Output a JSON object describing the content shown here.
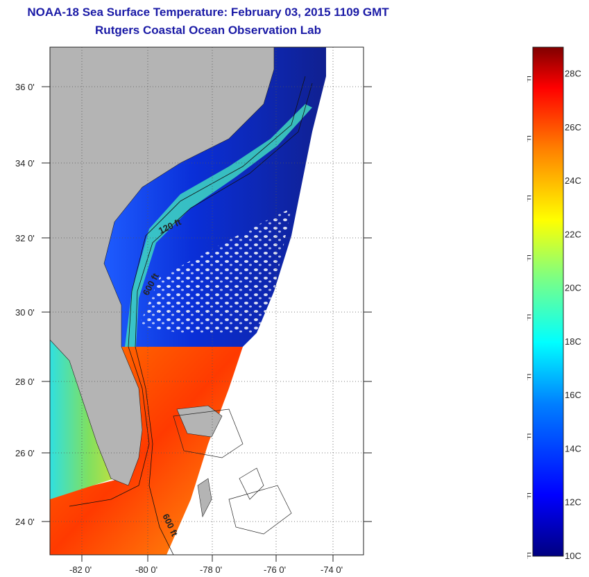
{
  "title": "NOAA-18 Sea Surface Temperature:  February 03, 2015 1109 GMT",
  "subtitle": "Rutgers Coastal Ocean Observation Lab",
  "map": {
    "lon_labels": [
      "-82 0'",
      "-80 0'",
      "-78 0'",
      "-76 0'",
      "-74 0'"
    ],
    "lat_labels": [
      "36 0'",
      "34 0'",
      "32 0'",
      "30 0'",
      "28 0'",
      "26 0'",
      "24 0'"
    ],
    "contour_labels": [
      "120 ft",
      "600 ft",
      "600 ft"
    ],
    "colors": {
      "land": "#b4b4b4",
      "no_data": "#ffffff",
      "grid": "#555555"
    }
  },
  "colorbar": {
    "fahrenheit": [
      "82F",
      "78F",
      "74F",
      "70F",
      "66F",
      "62F",
      "58F",
      "54F",
      "50F"
    ],
    "celsius": [
      "28C",
      "26C",
      "24C",
      "22C",
      "20C",
      "18C",
      "16C",
      "14C",
      "12C",
      "10C"
    ],
    "min_c": 10,
    "max_c": 29,
    "colors": [
      "#000080",
      "#0000ff",
      "#0080ff",
      "#00ffff",
      "#80ff80",
      "#ffff00",
      "#ff8000",
      "#ff0000",
      "#800000"
    ]
  }
}
